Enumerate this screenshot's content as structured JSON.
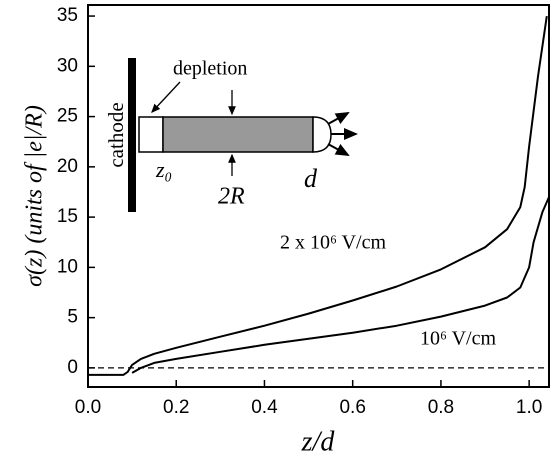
{
  "chart_data": {
    "type": "line",
    "ylabel": "σ(z)  (units of |e|/R)",
    "xlabel": "z/d",
    "xlim": [
      0,
      1.045
    ],
    "ylim": [
      -1.9,
      36.1
    ],
    "xticks": [
      {
        "value": 0,
        "label": "0.0"
      },
      0.2,
      0.4,
      0.6,
      0.8,
      {
        "value": 1,
        "label": "1.0"
      }
    ],
    "yticks": [
      0,
      5,
      10,
      15,
      20,
      25,
      30,
      35
    ],
    "reference_line": 0,
    "series": [
      {
        "name": "2 x 10⁶ V/cm",
        "color": "#000000",
        "x": [
          0,
          0.08,
          0.09,
          0.1,
          0.12,
          0.15,
          0.2,
          0.3,
          0.4,
          0.5,
          0.6,
          0.7,
          0.8,
          0.9,
          0.95,
          0.98,
          0.99,
          1.0,
          1.02,
          1.04
        ],
        "values": [
          -0.7,
          -0.7,
          -0.4,
          0.3,
          0.9,
          1.4,
          2.0,
          3.1,
          4.2,
          5.4,
          6.7,
          8.1,
          9.8,
          12.0,
          13.8,
          16,
          18,
          22,
          29,
          35
        ]
      },
      {
        "name": "10⁶ V/cm",
        "color": "#000000",
        "x": [
          0.1,
          0.12,
          0.15,
          0.2,
          0.3,
          0.4,
          0.5,
          0.6,
          0.7,
          0.8,
          0.9,
          0.95,
          0.98,
          1.0,
          1.01,
          1.03,
          1.045
        ],
        "values": [
          -0.5,
          0,
          0.5,
          0.9,
          1.6,
          2.3,
          2.9,
          3.5,
          4.2,
          5.1,
          6.2,
          7.0,
          8,
          10,
          12.5,
          15.5,
          17
        ]
      }
    ],
    "inset": {
      "cathode": "cathode",
      "depletion": "depletion",
      "z0": "z₀",
      "radius": "2R",
      "length": "d"
    }
  }
}
